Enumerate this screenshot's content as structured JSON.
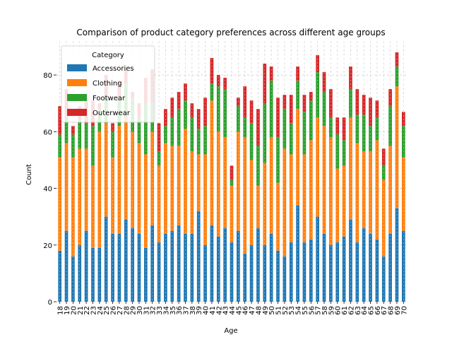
{
  "chart_data": {
    "type": "bar",
    "stacked": true,
    "title": "Comparison of product category preferences across different age groups",
    "xlabel": "Age",
    "ylabel": "Count",
    "ylim": [
      0,
      92
    ],
    "yticks": [
      0,
      20,
      40,
      60,
      80
    ],
    "grid": true,
    "legend": {
      "title": "Category",
      "position": "upper-left"
    },
    "categories": [
      18,
      19,
      20,
      21,
      22,
      23,
      24,
      25,
      26,
      27,
      28,
      29,
      30,
      31,
      32,
      33,
      34,
      35,
      36,
      37,
      38,
      39,
      40,
      41,
      42,
      43,
      44,
      45,
      46,
      47,
      48,
      49,
      50,
      51,
      52,
      53,
      54,
      55,
      56,
      57,
      58,
      59,
      60,
      61,
      62,
      63,
      64,
      65,
      66,
      67,
      68,
      69,
      70
    ],
    "series": [
      {
        "name": "Accessories",
        "color": "#1f77b4",
        "values": [
          18,
          25,
          16,
          20,
          25,
          19,
          19,
          30,
          24,
          24,
          29,
          26,
          24,
          19,
          27,
          21,
          24,
          25,
          27,
          24,
          24,
          32,
          20,
          27,
          23,
          26,
          21,
          25,
          17,
          20,
          26,
          20,
          24,
          18,
          16,
          21,
          34,
          21,
          22,
          30,
          24,
          20,
          21,
          23,
          29,
          21,
          26,
          24,
          22,
          16,
          24,
          33,
          25
        ]
      },
      {
        "name": "Clothing",
        "color": "#ff7f0e",
        "values": [
          33,
          31,
          35,
          34,
          29,
          29,
          41,
          33,
          27,
          38,
          36,
          34,
          32,
          33,
          33,
          27,
          32,
          30,
          28,
          37,
          29,
          20,
          32,
          44,
          37,
          32,
          20,
          35,
          41,
          30,
          15,
          29,
          34,
          24,
          38,
          31,
          34,
          31,
          35,
          35,
          38,
          38,
          26,
          25,
          36,
          35,
          27,
          29,
          35,
          27,
          31,
          43,
          26
        ]
      },
      {
        "name": "Footwear",
        "color": "#2ca02c",
        "values": [
          8,
          9,
          8,
          10,
          9,
          14,
          8,
          9,
          9,
          10,
          12,
          12,
          9,
          18,
          10,
          5,
          6,
          10,
          13,
          10,
          12,
          9,
          10,
          6,
          16,
          17,
          2,
          9,
          7,
          13,
          14,
          21,
          20,
          16,
          14,
          11,
          10,
          15,
          14,
          16,
          12,
          7,
          12,
          9,
          10,
          10,
          13,
          9,
          8,
          5,
          14,
          7,
          11
        ]
      },
      {
        "name": "Outerwear",
        "color": "#d62728",
        "values": [
          10,
          10,
          3,
          5,
          9,
          9,
          2,
          8,
          3,
          6,
          5,
          2,
          5,
          9,
          12,
          10,
          6,
          7,
          6,
          6,
          5,
          7,
          10,
          9,
          4,
          4,
          5,
          3,
          11,
          8,
          13,
          14,
          5,
          14,
          5,
          10,
          5,
          6,
          3,
          6,
          7,
          10,
          6,
          8,
          8,
          9,
          7,
          10,
          6,
          6,
          6,
          5,
          5
        ]
      }
    ]
  }
}
